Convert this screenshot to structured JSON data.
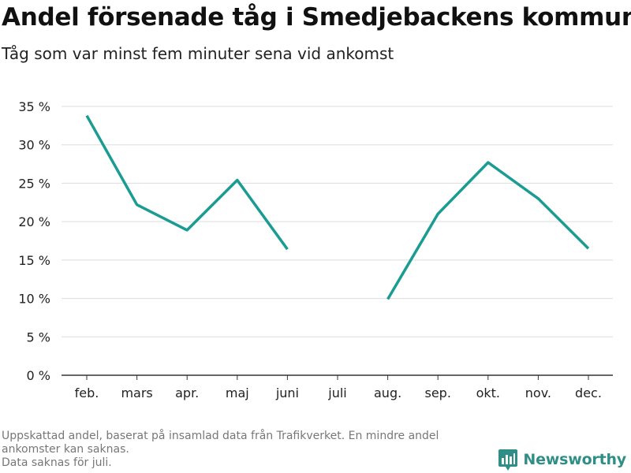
{
  "title": "Andel försenade tåg i Smedjebackens kommun",
  "subtitle": "Tåg som var minst fem minuter sena vid ankomst",
  "notes": [
    "Uppskattad andel, baserat på insamlad data från Trafikverket. En mindre andel ankomster kan saknas.",
    "Data saknas för juli."
  ],
  "brand": {
    "name": "Newsworthy",
    "icon": "newsworthy-logo-icon",
    "color": "#2f8f86"
  },
  "chart_data": {
    "type": "line",
    "categories": [
      "feb.",
      "mars",
      "apr.",
      "maj",
      "juni",
      "juli",
      "aug.",
      "sep.",
      "okt.",
      "nov.",
      "dec."
    ],
    "series": [
      {
        "values": [
          33.8,
          22.2,
          18.9,
          25.4,
          16.4,
          null,
          9.9,
          21.0,
          27.7,
          23.0,
          16.5
        ],
        "color": "#1a9c93"
      }
    ],
    "ylim": [
      0,
      35
    ],
    "yticks": [
      0,
      5,
      10,
      15,
      20,
      25,
      30,
      35
    ],
    "ytick_labels": [
      "0 %",
      "5 %",
      "10 %",
      "15 %",
      "20 %",
      "25 %",
      "30 %",
      "35 %"
    ],
    "grid": true,
    "xlabel": "",
    "ylabel": ""
  }
}
